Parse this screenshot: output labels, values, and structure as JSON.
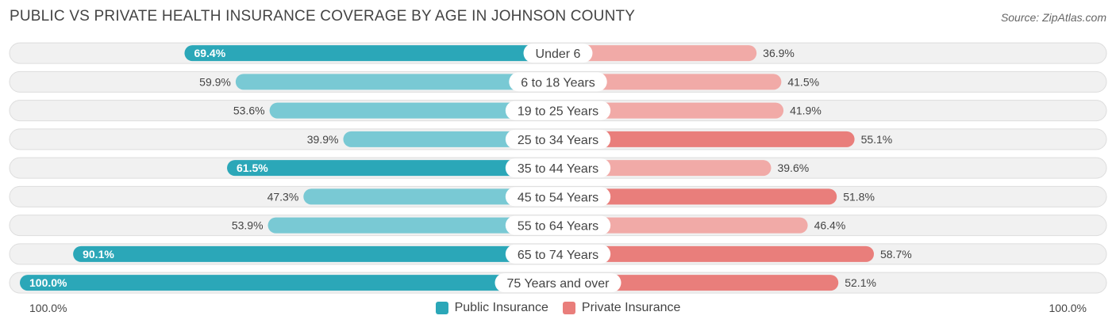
{
  "header": {
    "title": "PUBLIC VS PRIVATE HEALTH INSURANCE COVERAGE BY AGE IN JOHNSON COUNTY",
    "source": "Source: ZipAtlas.com"
  },
  "axis": {
    "left_label": "100.0%",
    "right_label": "100.0%"
  },
  "legend": {
    "public_label": "Public Insurance",
    "private_label": "Private Insurance"
  },
  "colors": {
    "public_strong": "#2ba7b8",
    "public_light": "#79c9d4",
    "private_strong": "#e97e7b",
    "private_light": "#f1aaa7",
    "row_bg": "#f1f1f1",
    "row_border": "#dddddd"
  },
  "chart_data": {
    "type": "bar",
    "title": "PUBLIC VS PRIVATE HEALTH INSURANCE COVERAGE BY AGE IN JOHNSON COUNTY",
    "orientation": "diverging-horizontal",
    "xlim": [
      -100,
      100
    ],
    "categories": [
      "Under 6",
      "6 to 18 Years",
      "19 to 25 Years",
      "25 to 34 Years",
      "35 to 44 Years",
      "45 to 54 Years",
      "55 to 64 Years",
      "65 to 74 Years",
      "75 Years and over"
    ],
    "series": [
      {
        "name": "Public Insurance",
        "values": [
          69.4,
          59.9,
          53.6,
          39.9,
          61.5,
          47.3,
          53.9,
          90.1,
          100.0
        ],
        "labels": [
          "69.4%",
          "59.9%",
          "53.6%",
          "39.9%",
          "61.5%",
          "47.3%",
          "53.9%",
          "90.1%",
          "100.0%"
        ]
      },
      {
        "name": "Private Insurance",
        "values": [
          36.9,
          41.5,
          41.9,
          55.1,
          39.6,
          51.8,
          46.4,
          58.7,
          52.1
        ],
        "labels": [
          "36.9%",
          "41.5%",
          "41.9%",
          "55.1%",
          "39.6%",
          "51.8%",
          "46.4%",
          "58.7%",
          "52.1%"
        ]
      }
    ]
  }
}
